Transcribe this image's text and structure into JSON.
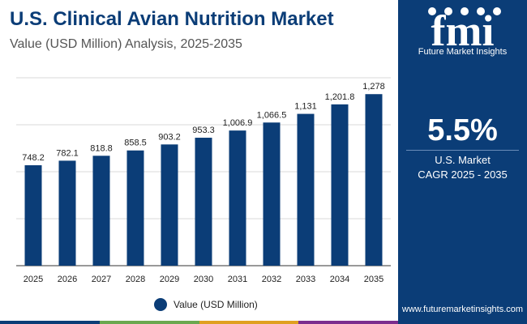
{
  "header": {
    "title": "U.S. Clinical Avian Nutrition Market",
    "subtitle": "Value (USD Million) Analysis, 2025-2035"
  },
  "side_panel": {
    "logo_letters": "fmi",
    "brand_name": "Future Market Insights",
    "cagr_value": "5.5%",
    "cagr_label_line1": "U.S. Market",
    "cagr_label_line2": "CAGR 2025 - 2035",
    "website": "www.futuremarketinsights.com"
  },
  "colors": {
    "accent": "#0b3d77",
    "bar": "#0b3d77",
    "bottom_bar": [
      "#0b3d77",
      "#6aa84f",
      "#e0a020",
      "#7b2d8e"
    ]
  },
  "chart_data": {
    "type": "bar",
    "categories": [
      "2025",
      "2026",
      "2027",
      "2028",
      "2029",
      "2030",
      "2031",
      "2032",
      "2033",
      "2034",
      "2035"
    ],
    "series": [
      {
        "name": "Value (USD Million)",
        "values": [
          748.2,
          782.1,
          818.8,
          858.5,
          903.2,
          953.3,
          1006.9,
          1066.5,
          1131,
          1201.8,
          1278
        ],
        "labels": [
          "748.2",
          "782.1",
          "818.8",
          "858.5",
          "903.2",
          "953.3",
          "1,006.9",
          "1,066.5",
          "1,131",
          "1,201.8",
          "1,278"
        ]
      }
    ],
    "ylim": [
      0,
      1400
    ],
    "grid": true,
    "legend_position": "bottom-center"
  }
}
